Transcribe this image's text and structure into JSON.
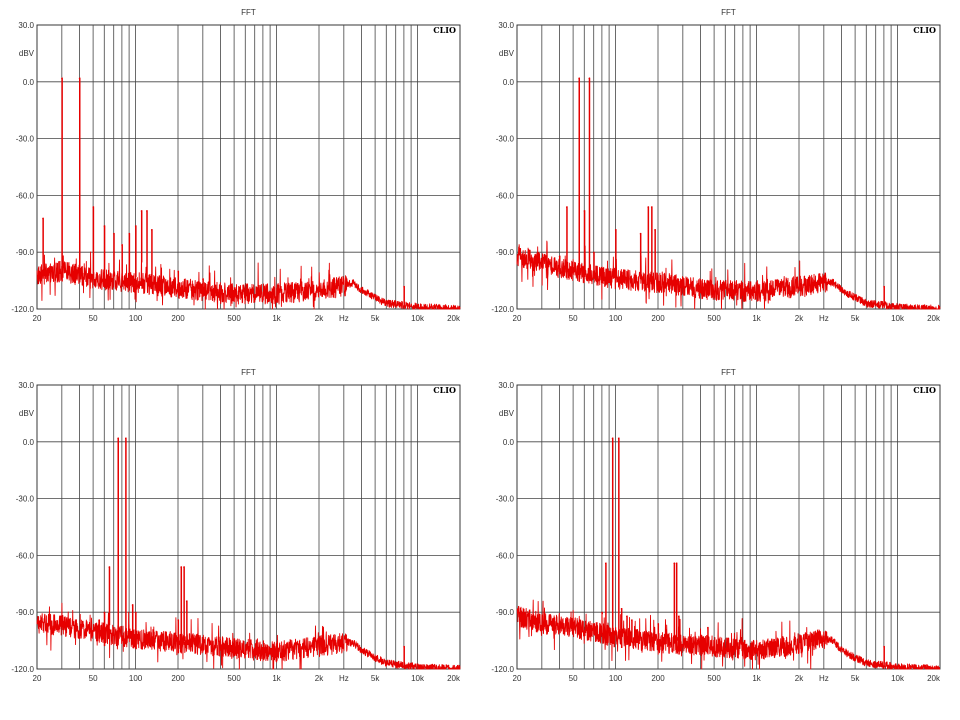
{
  "chart_data": [
    {
      "type": "line",
      "title": "FFT",
      "brand": "CLIO",
      "ylabel": "dBV",
      "xscale": "log",
      "xlim": [
        20,
        20000
      ],
      "ylim": [
        -120,
        30
      ],
      "yticks": [
        "30.0",
        "0.0",
        "-30.0",
        "-60.0",
        "-90.0",
        "-120.0"
      ],
      "xticks": [
        "20",
        "50",
        "100",
        "200",
        "500",
        "1k",
        "2k",
        "Hz",
        "5k",
        "10k",
        "20k"
      ],
      "grid": true,
      "series": [
        {
          "color": "#e60000",
          "noise_floor": [
            [
              20,
              -102
            ],
            [
              30,
              -100
            ],
            [
              50,
              -104
            ],
            [
              100,
              -106
            ],
            [
              200,
              -109
            ],
            [
              500,
              -112
            ],
            [
              1000,
              -112
            ],
            [
              2000,
              -110
            ],
            [
              3000,
              -108
            ],
            [
              3500,
              -106
            ],
            [
              4000,
              -110
            ],
            [
              5000,
              -114
            ],
            [
              6000,
              -117
            ],
            [
              8000,
              -118
            ],
            [
              10000,
              -119
            ],
            [
              20000,
              -120
            ]
          ],
          "peaks": [
            [
              22,
              -72
            ],
            [
              30,
              2
            ],
            [
              40,
              2
            ],
            [
              50,
              -66
            ],
            [
              60,
              -76
            ],
            [
              70,
              -80
            ],
            [
              80,
              -86
            ],
            [
              90,
              -80
            ],
            [
              100,
              -76
            ],
            [
              110,
              -68
            ],
            [
              120,
              -68
            ],
            [
              130,
              -78
            ],
            [
              200,
              -100
            ],
            [
              300,
              -104
            ],
            [
              8000,
              -108
            ]
          ]
        }
      ]
    },
    {
      "type": "line",
      "title": "FFT",
      "brand": "CLIO",
      "ylabel": "dBV",
      "xscale": "log",
      "xlim": [
        20,
        20000
      ],
      "ylim": [
        -120,
        30
      ],
      "yticks": [
        "30.0",
        "0.0",
        "-30.0",
        "-60.0",
        "-90.0",
        "-120.0"
      ],
      "xticks": [
        "20",
        "50",
        "100",
        "200",
        "500",
        "1k",
        "2k",
        "Hz",
        "5k",
        "10k",
        "20k"
      ],
      "grid": true,
      "series": [
        {
          "color": "#e60000",
          "noise_floor": [
            [
              20,
              -92
            ],
            [
              30,
              -96
            ],
            [
              50,
              -100
            ],
            [
              100,
              -104
            ],
            [
              200,
              -106
            ],
            [
              500,
              -110
            ],
            [
              1000,
              -111
            ],
            [
              2000,
              -108
            ],
            [
              3000,
              -106
            ],
            [
              3500,
              -106
            ],
            [
              4000,
              -110
            ],
            [
              5000,
              -114
            ],
            [
              6000,
              -117
            ],
            [
              8000,
              -118
            ],
            [
              10000,
              -119
            ],
            [
              20000,
              -120
            ]
          ],
          "peaks": [
            [
              21,
              -88
            ],
            [
              40,
              -92
            ],
            [
              45,
              -66
            ],
            [
              55,
              2
            ],
            [
              60,
              -68
            ],
            [
              65,
              2
            ],
            [
              70,
              -90
            ],
            [
              90,
              -100
            ],
            [
              100,
              -78
            ],
            [
              150,
              -80
            ],
            [
              170,
              -66
            ],
            [
              180,
              -66
            ],
            [
              190,
              -78
            ],
            [
              8000,
              -108
            ]
          ]
        }
      ]
    },
    {
      "type": "line",
      "title": "FFT",
      "brand": "CLIO",
      "ylabel": "dBV",
      "xscale": "log",
      "xlim": [
        20,
        20000
      ],
      "ylim": [
        -120,
        30
      ],
      "yticks": [
        "30.0",
        "0.0",
        "-30.0",
        "-60.0",
        "-90.0",
        "-120.0"
      ],
      "xticks": [
        "20",
        "50",
        "100",
        "200",
        "500",
        "1k",
        "2k",
        "Hz",
        "5k",
        "10k",
        "20k"
      ],
      "grid": true,
      "series": [
        {
          "color": "#e60000",
          "noise_floor": [
            [
              20,
              -96
            ],
            [
              30,
              -97
            ],
            [
              50,
              -100
            ],
            [
              100,
              -104
            ],
            [
              200,
              -106
            ],
            [
              500,
              -109
            ],
            [
              1000,
              -111
            ],
            [
              2000,
              -108
            ],
            [
              3000,
              -106
            ],
            [
              3500,
              -106
            ],
            [
              4000,
              -110
            ],
            [
              5000,
              -114
            ],
            [
              6000,
              -117
            ],
            [
              8000,
              -118
            ],
            [
              10000,
              -119
            ],
            [
              20000,
              -120
            ]
          ],
          "peaks": [
            [
              55,
              -94
            ],
            [
              60,
              -90
            ],
            [
              65,
              -66
            ],
            [
              75,
              2
            ],
            [
              85,
              2
            ],
            [
              95,
              -86
            ],
            [
              100,
              -90
            ],
            [
              200,
              -94
            ],
            [
              210,
              -66
            ],
            [
              220,
              -66
            ],
            [
              230,
              -84
            ],
            [
              500,
              -104
            ],
            [
              8000,
              -108
            ]
          ]
        }
      ]
    },
    {
      "type": "line",
      "title": "FFT",
      "brand": "CLIO",
      "ylabel": "dBV",
      "xscale": "log",
      "xlim": [
        20,
        20000
      ],
      "ylim": [
        -120,
        30
      ],
      "yticks": [
        "30.0",
        "0.0",
        "-30.0",
        "-60.0",
        "-90.0",
        "-120.0"
      ],
      "xticks": [
        "20",
        "50",
        "100",
        "200",
        "500",
        "1k",
        "2k",
        "Hz",
        "5k",
        "10k",
        "20k"
      ],
      "grid": true,
      "series": [
        {
          "color": "#e60000",
          "noise_floor": [
            [
              20,
              -92
            ],
            [
              30,
              -96
            ],
            [
              50,
              -98
            ],
            [
              100,
              -103
            ],
            [
              200,
              -106
            ],
            [
              500,
              -108
            ],
            [
              1000,
              -110
            ],
            [
              2000,
              -107
            ],
            [
              3000,
              -104
            ],
            [
              3500,
              -105
            ],
            [
              4000,
              -110
            ],
            [
              5000,
              -114
            ],
            [
              6000,
              -117
            ],
            [
              8000,
              -118
            ],
            [
              10000,
              -119
            ],
            [
              20000,
              -120
            ]
          ],
          "peaks": [
            [
              70,
              -96
            ],
            [
              80,
              -90
            ],
            [
              85,
              -64
            ],
            [
              95,
              2
            ],
            [
              105,
              2
            ],
            [
              110,
              -88
            ],
            [
              120,
              -92
            ],
            [
              130,
              -94
            ],
            [
              200,
              -96
            ],
            [
              260,
              -64
            ],
            [
              270,
              -64
            ],
            [
              280,
              -92
            ],
            [
              450,
              -98
            ],
            [
              8000,
              -108
            ]
          ]
        }
      ]
    }
  ]
}
